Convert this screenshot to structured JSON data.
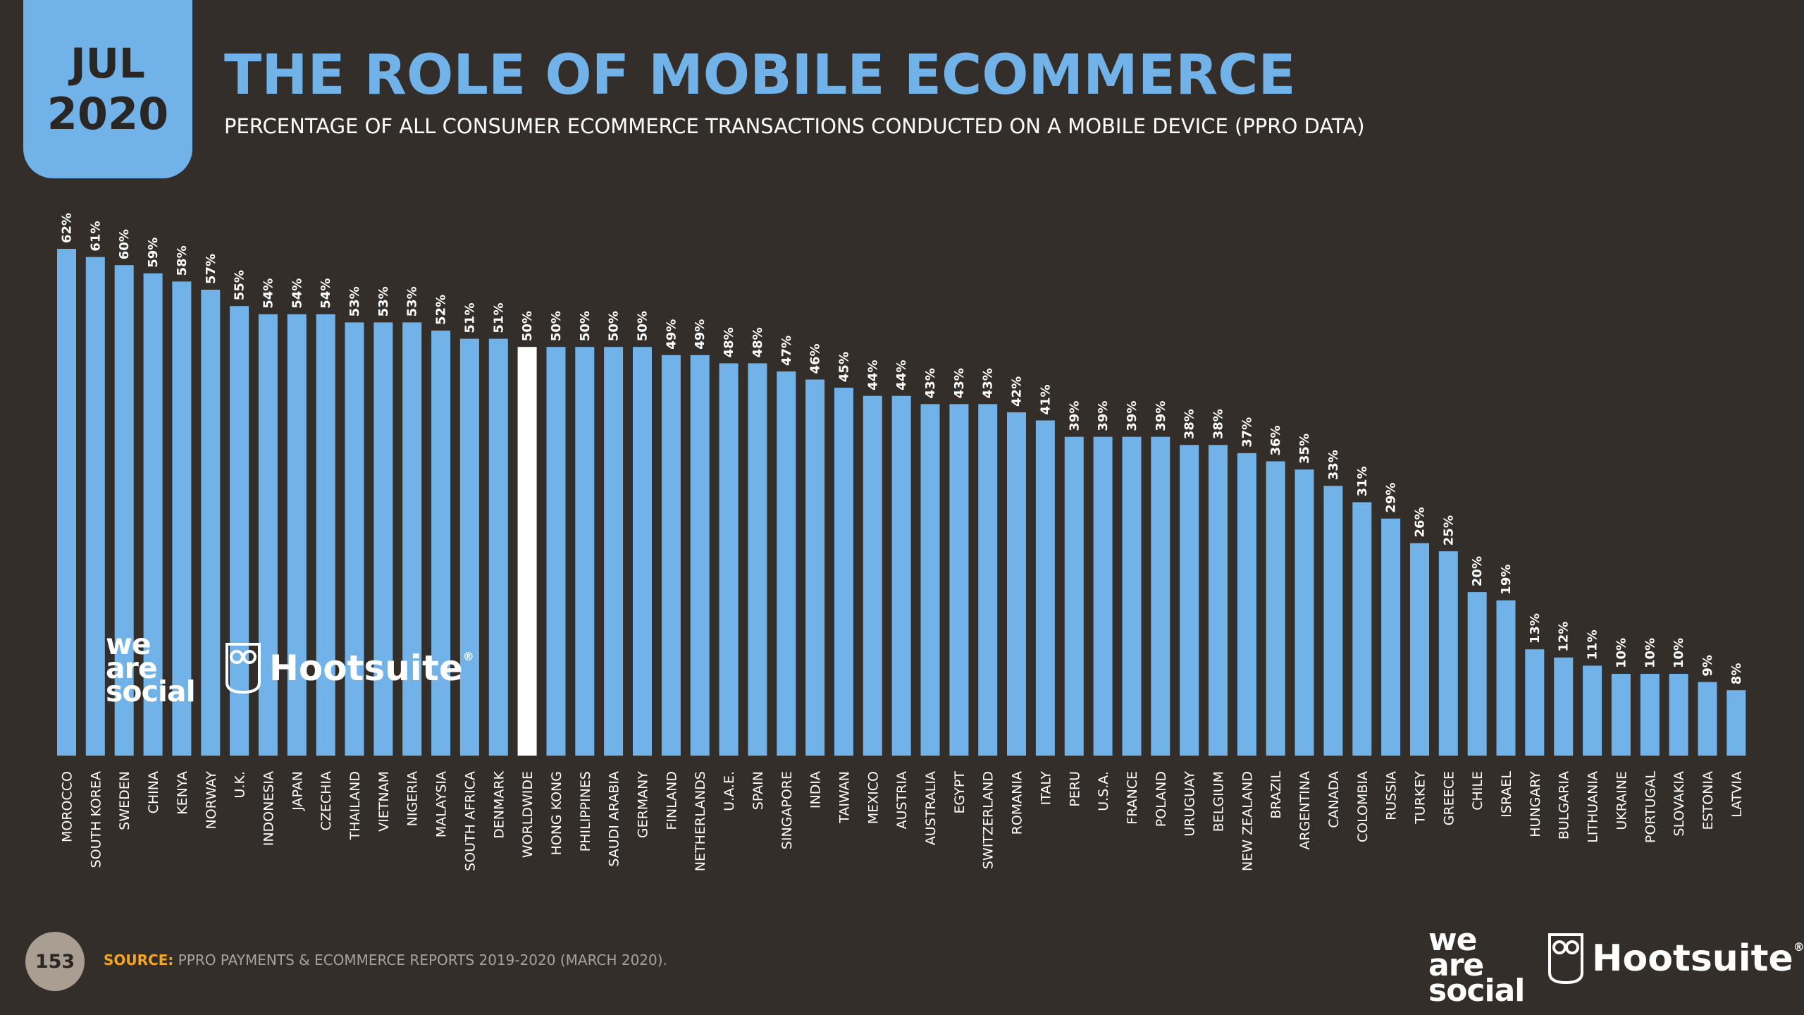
{
  "header": {
    "month": "JUL",
    "year": "2020",
    "title": "THE ROLE OF MOBILE ECOMMERCE",
    "subtitle": "PERCENTAGE OF ALL CONSUMER ECOMMERCE TRANSACTIONS CONDUCTED ON A MOBILE DEVICE (PPRO DATA)"
  },
  "colors": {
    "background": "#342e2a",
    "bar": "#71b2e9",
    "highlight_bar": "#ffffff",
    "source_label": "#f5a623"
  },
  "chart_data": {
    "type": "bar",
    "title": "THE ROLE OF MOBILE ECOMMERCE",
    "xlabel": "",
    "ylabel": "",
    "ylim": [
      0,
      62
    ],
    "value_suffix": "%",
    "highlight": "WORLDWIDE",
    "categories": [
      "MOROCCO",
      "SOUTH KOREA",
      "SWEDEN",
      "CHINA",
      "KENYA",
      "NORWAY",
      "U.K.",
      "INDONESIA",
      "JAPAN",
      "CZECHIA",
      "THAILAND",
      "VIETNAM",
      "NIGERIA",
      "MALAYSIA",
      "SOUTH AFRICA",
      "DENMARK",
      "WORLDWIDE",
      "HONG KONG",
      "PHILIPPINES",
      "SAUDI ARABIA",
      "GERMANY",
      "FINLAND",
      "NETHERLANDS",
      "U.A.E.",
      "SPAIN",
      "SINGAPORE",
      "INDIA",
      "TAIWAN",
      "MEXICO",
      "AUSTRIA",
      "AUSTRALIA",
      "EGYPT",
      "SWITZERLAND",
      "ROMANIA",
      "ITALY",
      "PERU",
      "U.S.A.",
      "FRANCE",
      "POLAND",
      "URUGUAY",
      "BELGIUM",
      "NEW ZEALAND",
      "BRAZIL",
      "ARGENTINA",
      "CANADA",
      "COLOMBIA",
      "RUSSIA",
      "TURKEY",
      "GREECE",
      "CHILE",
      "ISRAEL",
      "HUNGARY",
      "BULGARIA",
      "LITHUANIA",
      "UKRAINE",
      "PORTUGAL",
      "SLOVAKIA",
      "ESTONIA",
      "LATVIA"
    ],
    "values": [
      62,
      61,
      60,
      59,
      58,
      57,
      55,
      54,
      54,
      54,
      53,
      53,
      53,
      52,
      51,
      51,
      50,
      50,
      50,
      50,
      50,
      49,
      49,
      48,
      48,
      47,
      46,
      45,
      44,
      44,
      43,
      43,
      43,
      42,
      41,
      39,
      39,
      39,
      39,
      38,
      38,
      37,
      36,
      35,
      33,
      31,
      29,
      26,
      25,
      20,
      19,
      13,
      12,
      11,
      10,
      10,
      10,
      9,
      8
    ]
  },
  "logos": {
    "we_are_social": [
      "we",
      "are",
      "social"
    ],
    "hootsuite": "Hootsuite",
    "registered": "®"
  },
  "footer": {
    "page_number": "153",
    "source_label": "SOURCE:",
    "source_text": " PPRO PAYMENTS & ECOMMERCE REPORTS 2019-2020 (MARCH 2020)."
  }
}
